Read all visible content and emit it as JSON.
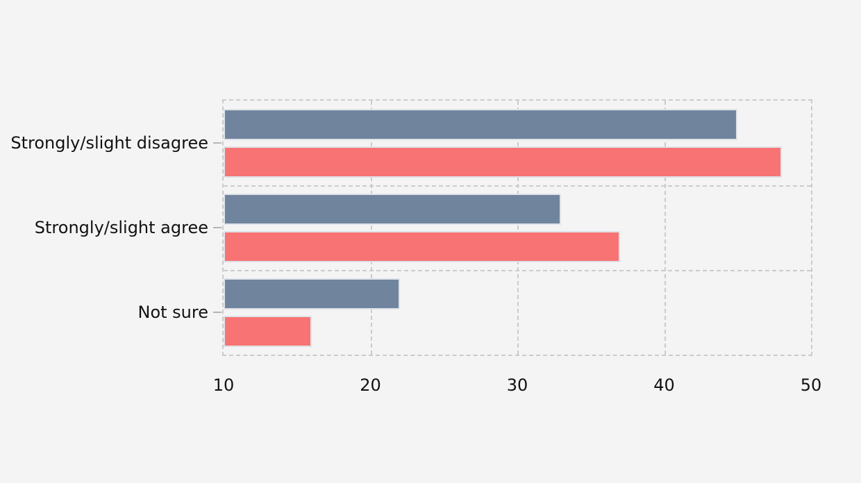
{
  "page": {
    "background": "#f4f4f4",
    "text_color": "#111111"
  },
  "chart_data": {
    "type": "bar",
    "orientation": "horizontal",
    "title": "",
    "xlabel": "",
    "ylabel": "",
    "categories": [
      "Strongly/slight disagree",
      "Strongly/slight agree",
      "Not sure"
    ],
    "series": [
      {
        "name": "slate-blue-series",
        "color": "#70849e",
        "values": [
          45,
          33,
          22
        ]
      },
      {
        "name": "salmon-red-series",
        "color": "#f87373",
        "values": [
          48,
          37,
          16
        ]
      }
    ],
    "x_ticks": [
      10,
      20,
      30,
      40,
      50
    ],
    "xlim": [
      10,
      50
    ],
    "grid": "dashed",
    "legend": "none",
    "grid_color": "#cbcbcb",
    "bar_border_color": "#dfe2e7",
    "axis_tick_mark_color": "#b5b5b5"
  }
}
